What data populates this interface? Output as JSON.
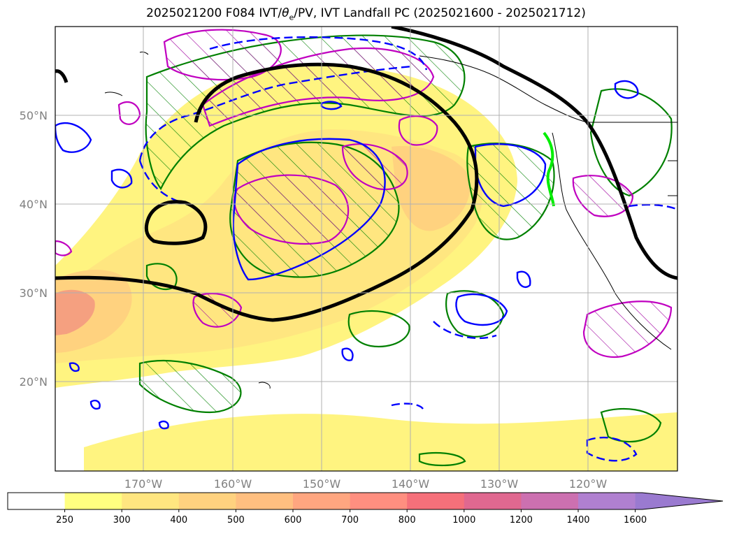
{
  "title": {
    "part1": "2025021200 F084 IVT/",
    "theta": "θ",
    "sub": "e",
    "part2": "/PV, IVT Landfall PC (2025021600 - 2025021712)"
  },
  "map": {
    "lat_labels": [
      "50°N",
      "40°N",
      "30°N",
      "20°N"
    ],
    "lon_labels": [
      "170°W",
      "160°W",
      "150°W",
      "140°W",
      "130°W",
      "120°W"
    ],
    "gridlines": true
  },
  "colorbar": {
    "ticks": [
      "250",
      "300",
      "400",
      "500",
      "600",
      "700",
      "800",
      "1000",
      "1200",
      "1400",
      "1600"
    ],
    "colors": [
      "#ffffff",
      "#ffff80",
      "#ffe680",
      "#ffd27f",
      "#ffbf80",
      "#ffa680",
      "#ff8f80",
      "#f5707a",
      "#e06890",
      "#cc70b0",
      "#b080d0",
      "#9a7ad0"
    ],
    "extend": "max"
  },
  "legend_colors": {
    "ivt_fill_low": "#fff480",
    "ivt_fill_mid": "#ffd880",
    "ivt_fill_high": "#f5a080",
    "pv_contour": "#008000",
    "theta_contour_solid": "#0000ff",
    "theta_contour_dashed": "#0000ff",
    "hatched_region": "#c000c0",
    "streamline_black": "#000000",
    "landfall_marker": "#00ee00",
    "coastline": "#000000"
  }
}
